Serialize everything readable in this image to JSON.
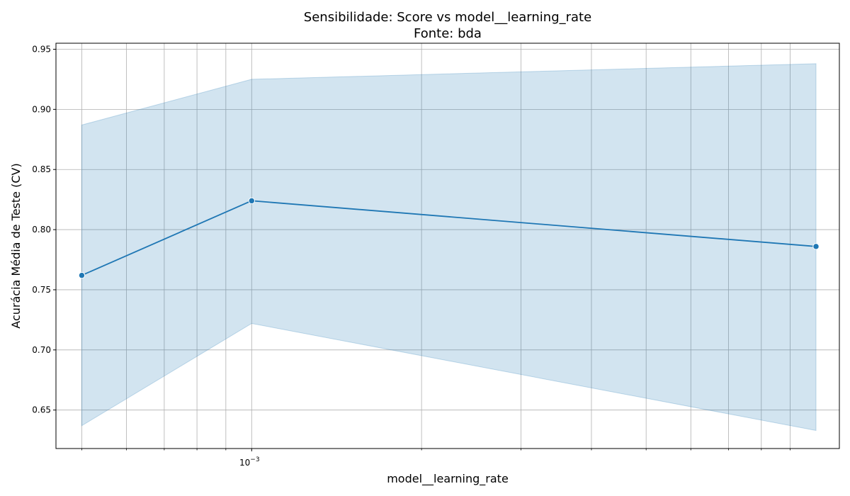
{
  "chart_data": {
    "type": "line",
    "title": "Sensibilidade: Score vs model__learning_rate",
    "subtitle": "Fonte: bda",
    "xlabel": "model__learning_rate",
    "ylabel": "Acurácia Média de Teste (CV)",
    "x_scale": "log",
    "xlim": [
      0.00045,
      0.011
    ],
    "ylim": [
      0.618,
      0.955
    ],
    "grid": true,
    "x_major_ticks": [
      {
        "value": 0.001,
        "base": "10",
        "exp": "−3"
      }
    ],
    "x_minor_ticks": [
      0.0005,
      0.0006,
      0.0007,
      0.0008,
      0.0009,
      0.002,
      0.003,
      0.004,
      0.005,
      0.006,
      0.007,
      0.008,
      0.009
    ],
    "y_ticks": [
      0.65,
      0.7,
      0.75,
      0.8,
      0.85,
      0.9,
      0.95
    ],
    "y_tick_labels": [
      "0.65",
      "0.70",
      "0.75",
      "0.80",
      "0.85",
      "0.90",
      "0.95"
    ],
    "colors": {
      "line": "#1f77b4",
      "band": "#1f77b4",
      "grid": "#b0b0b0"
    },
    "series": [
      {
        "x": [
          0.0005,
          0.001,
          0.01
        ],
        "y": [
          0.762,
          0.824,
          0.786
        ],
        "lower": [
          0.637,
          0.722,
          0.633
        ],
        "upper": [
          0.887,
          0.925,
          0.938
        ]
      }
    ]
  }
}
